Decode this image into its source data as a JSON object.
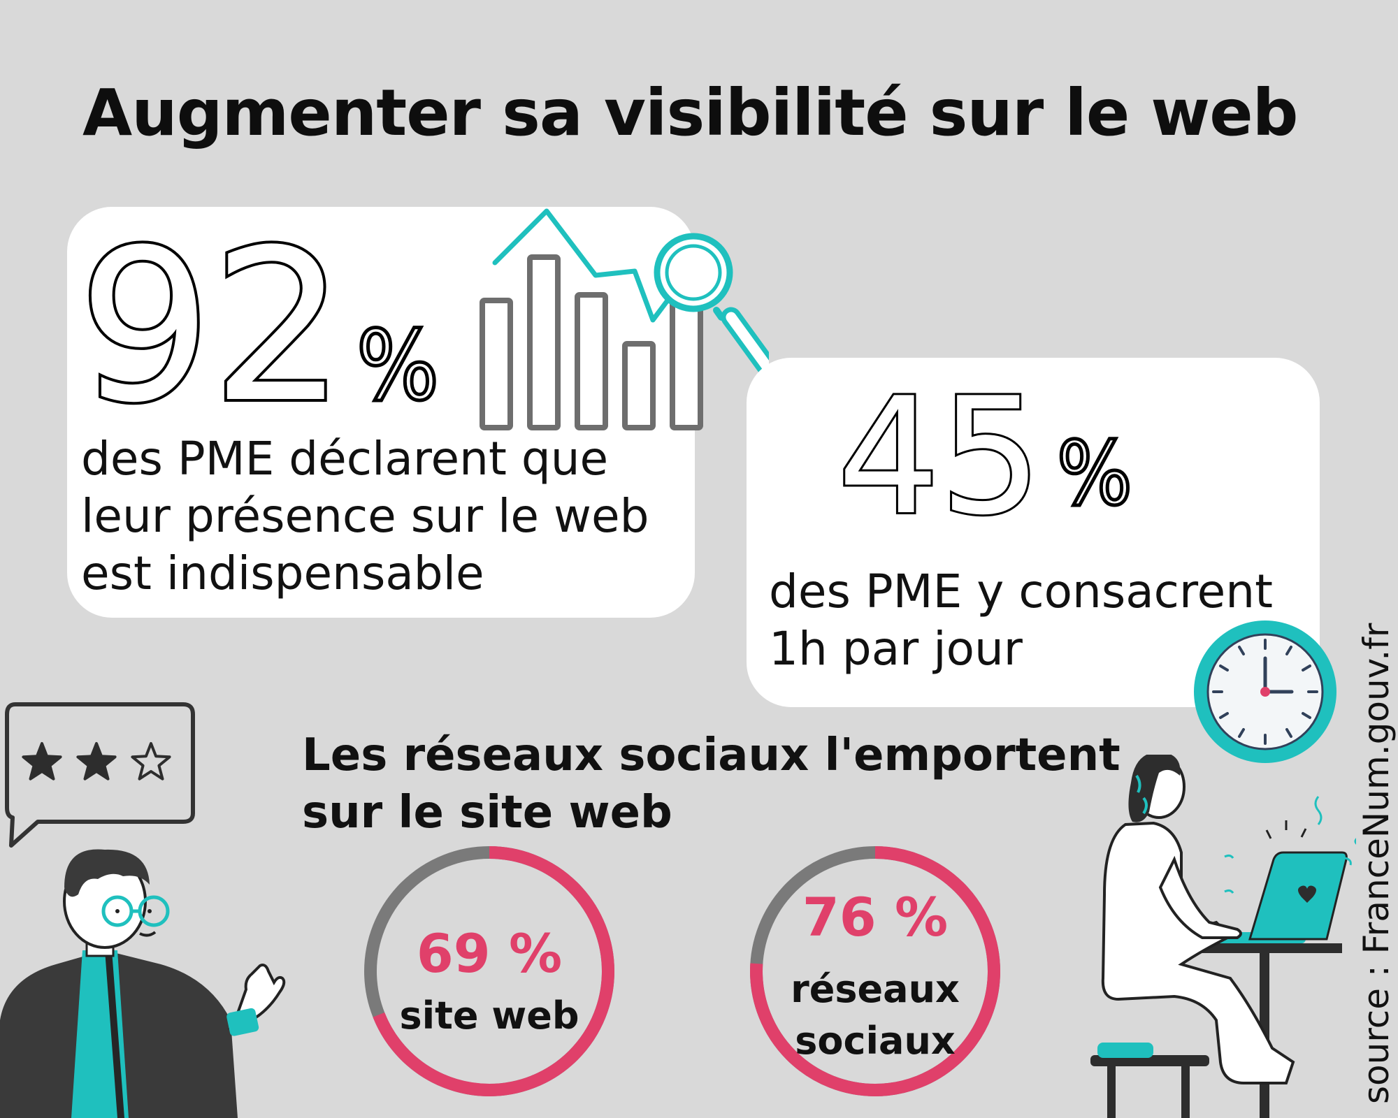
{
  "title": "Augmenter sa visibilité sur le web",
  "stat1": {
    "number": "92",
    "percent": "%",
    "lines": [
      "des PME déclarent que",
      "leur présence sur le web",
      "est indispensable"
    ]
  },
  "stat2": {
    "number": "45",
    "percent": "%",
    "lines": [
      "des PME y consacrent",
      "1h par jour"
    ]
  },
  "subtitle": {
    "lines": [
      "Les réseaux sociaux l'emportent",
      "sur le site web"
    ]
  },
  "rings": [
    {
      "percent_label": "69 %",
      "caption_lines": [
        "site web"
      ],
      "value": 69
    },
    {
      "percent_label": "76 %",
      "caption_lines": [
        "réseaux",
        "sociaux"
      ],
      "value": 76
    }
  ],
  "source": "source : FranceNum.gouv.fr",
  "review": {
    "stars_filled": 2,
    "stars_total": 3
  },
  "colors": {
    "background": "#d9d9d9",
    "accent_teal": "#1fc0be",
    "accent_pink": "#e0406a",
    "ring_gray": "#7a7a7a",
    "card": "#ffffff"
  },
  "icons": [
    "bar-chart-icon",
    "magnifier-icon",
    "trend-line-icon",
    "clock-icon",
    "speech-bubble-icon",
    "star-icon",
    "man-illustration",
    "woman-laptop-illustration"
  ]
}
